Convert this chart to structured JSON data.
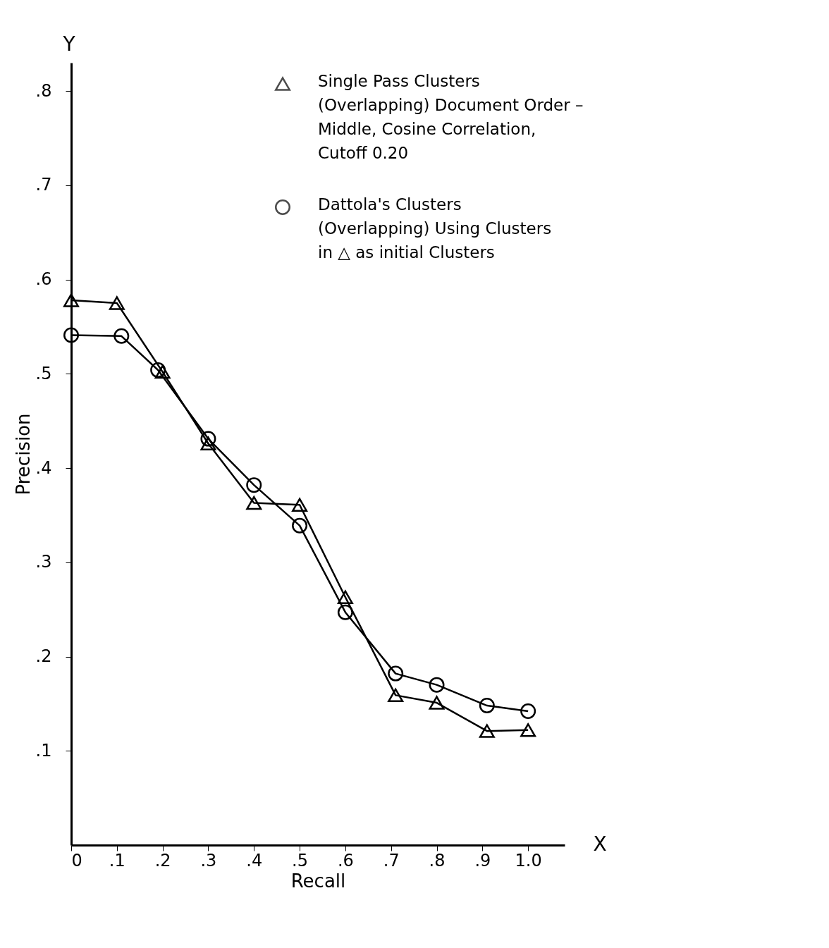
{
  "chart_data": {
    "type": "line",
    "xlabel": "Recall",
    "ylabel": "Precision",
    "x": [
      0,
      0.1,
      0.2,
      0.3,
      0.4,
      0.5,
      0.6,
      0.71,
      0.8,
      0.91,
      1.0
    ],
    "series": [
      {
        "name": "Single Pass Clusters\n(Overlapping) Document Order –\nMiddle, Cosine Correlation,\nCutoff 0.20",
        "color": "#000000",
        "marker": "triangle",
        "values": [
          0.578,
          0.575,
          0.502,
          0.426,
          0.363,
          0.361,
          0.263,
          0.159,
          0.151,
          0.121,
          0.122
        ]
      },
      {
        "name": "Dattola's Clusters\n(Overlapping) Using Clusters\nin △ as initial Clusters",
        "color": "#000000",
        "marker": "circle",
        "x": [
          0,
          0.11,
          0.19,
          0.3,
          0.4,
          0.5,
          0.6,
          0.71,
          0.8,
          0.91,
          1.0
        ],
        "values": [
          0.541,
          0.54,
          0.504,
          0.431,
          0.382,
          0.339,
          0.247,
          0.182,
          0.17,
          0.148,
          0.142
        ]
      }
    ],
    "xlim": [
      0,
      1.08
    ],
    "ylim": [
      0,
      0.83
    ],
    "xticks": [
      {
        "value": 0,
        "label": "0"
      },
      {
        "value": 0.1,
        "label": ".1"
      },
      {
        "value": 0.2,
        "label": ".2"
      },
      {
        "value": 0.3,
        "label": ".3"
      },
      {
        "value": 0.4,
        "label": ".4"
      },
      {
        "value": 0.5,
        "label": ".5"
      },
      {
        "value": 0.6,
        "label": ".6"
      },
      {
        "value": 0.7,
        "label": ".7"
      },
      {
        "value": 0.8,
        "label": ".8"
      },
      {
        "value": 0.9,
        "label": ".9"
      },
      {
        "value": 1.0,
        "label": "1.0"
      }
    ],
    "yticks": [
      {
        "value": 0.1,
        "label": ".1"
      },
      {
        "value": 0.2,
        "label": ".2"
      },
      {
        "value": 0.3,
        "label": ".3"
      },
      {
        "value": 0.4,
        "label": ".4"
      },
      {
        "value": 0.5,
        "label": ".5"
      },
      {
        "value": 0.6,
        "label": ".6"
      },
      {
        "value": 0.7,
        "label": ".7"
      },
      {
        "value": 0.8,
        "label": ".8"
      }
    ],
    "annotations": [
      "Y",
      "X"
    ],
    "grid": false,
    "legend": "top right",
    "line_style": "solid"
  }
}
